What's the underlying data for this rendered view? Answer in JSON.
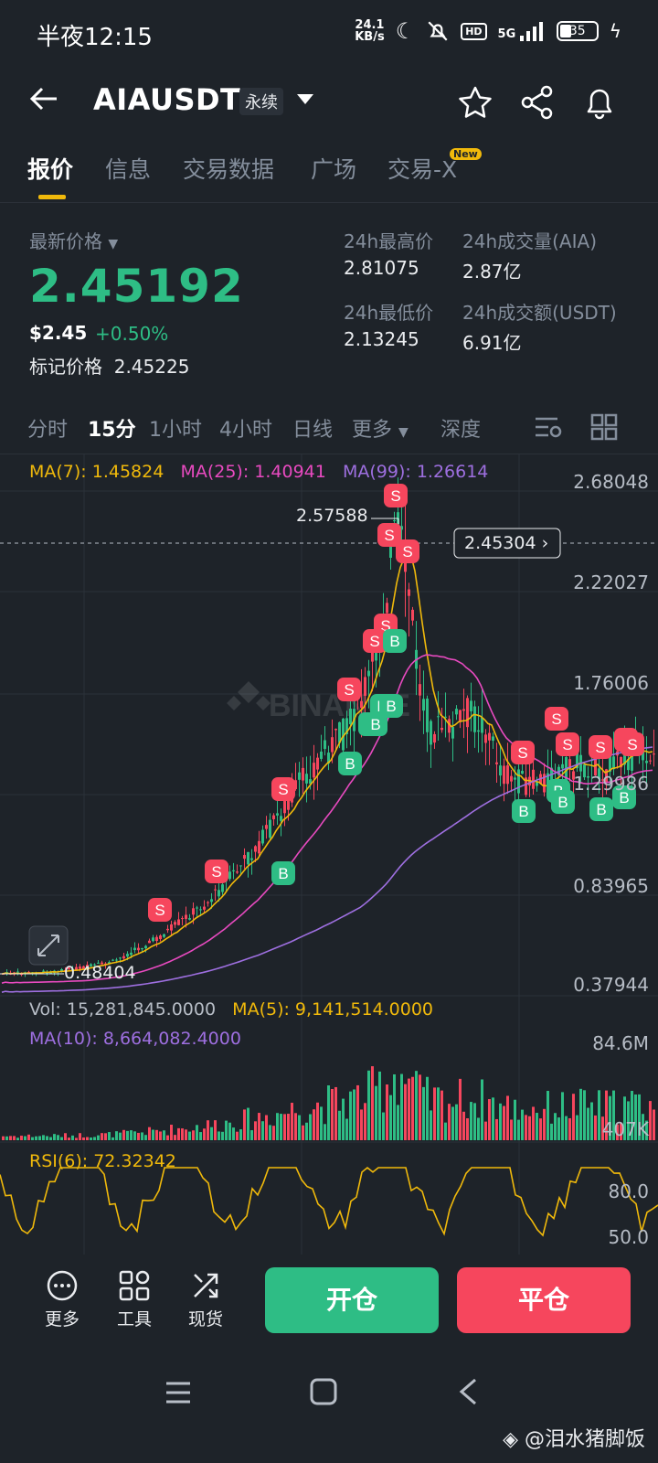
{
  "status": {
    "time": "半夜12:15",
    "net_speed_value": "24.1",
    "net_speed_unit": "KB/s",
    "hd": "HD",
    "signal": "5G",
    "battery": "35"
  },
  "header": {
    "symbol": "AIAUSDT",
    "badge": "永续"
  },
  "tabs": [
    {
      "label": "报价"
    },
    {
      "label": "信息"
    },
    {
      "label": "交易数据"
    },
    {
      "label": "广场"
    },
    {
      "label": "交易-X"
    }
  ],
  "new_badge": "New",
  "price": {
    "latest_label": "最新价格",
    "last": "2.45192",
    "usd": "$2.45",
    "change": "+0.50%",
    "mark_label": "标记价格",
    "mark_value": "2.45225",
    "high_label": "24h最高价",
    "high": "2.81075",
    "low_label": "24h最低价",
    "low": "2.13245",
    "vol_label": "24h成交量(AIA)",
    "vol": "2.87亿",
    "amount_label": "24h成交额(USDT)",
    "amount": "6.91亿"
  },
  "timeframes": [
    "分时",
    "15分",
    "1小时",
    "4小时",
    "日线",
    "更多",
    "深度"
  ],
  "chart": {
    "ma7": "MA(7): 1.45824",
    "ma25": "MA(25): 1.40941",
    "ma99": "MA(99): 1.26614",
    "y_ticks": [
      "2.68048",
      "2.22027",
      "1.76006",
      "1.29986",
      "0.83965",
      "0.37944"
    ],
    "high_marker": "2.57588",
    "low_marker": "0.48404",
    "current_tag": "2.45304 ›",
    "vol_label": "Vol: 15,281,845.0000",
    "vol_ma5": "MA(5): 9,141,514.0000",
    "vol_ma10": "MA(10): 8,664,082.4000",
    "vol_ticks": [
      "84.6M",
      "407K"
    ],
    "rsi_label": "RSI(6): 72.32342",
    "rsi_ticks": [
      "80.0",
      "50.0"
    ],
    "colors": {
      "up": "#2ebd85",
      "down": "#f6465d",
      "ma7": "#f0b90b",
      "ma25": "#e84ac0",
      "ma99": "#9e6fe0"
    }
  },
  "bottom": {
    "more": "更多",
    "tools": "工具",
    "spot": "现货",
    "open": "开仓",
    "close": "平仓"
  },
  "watermark": "@泪水猪脚饭"
}
